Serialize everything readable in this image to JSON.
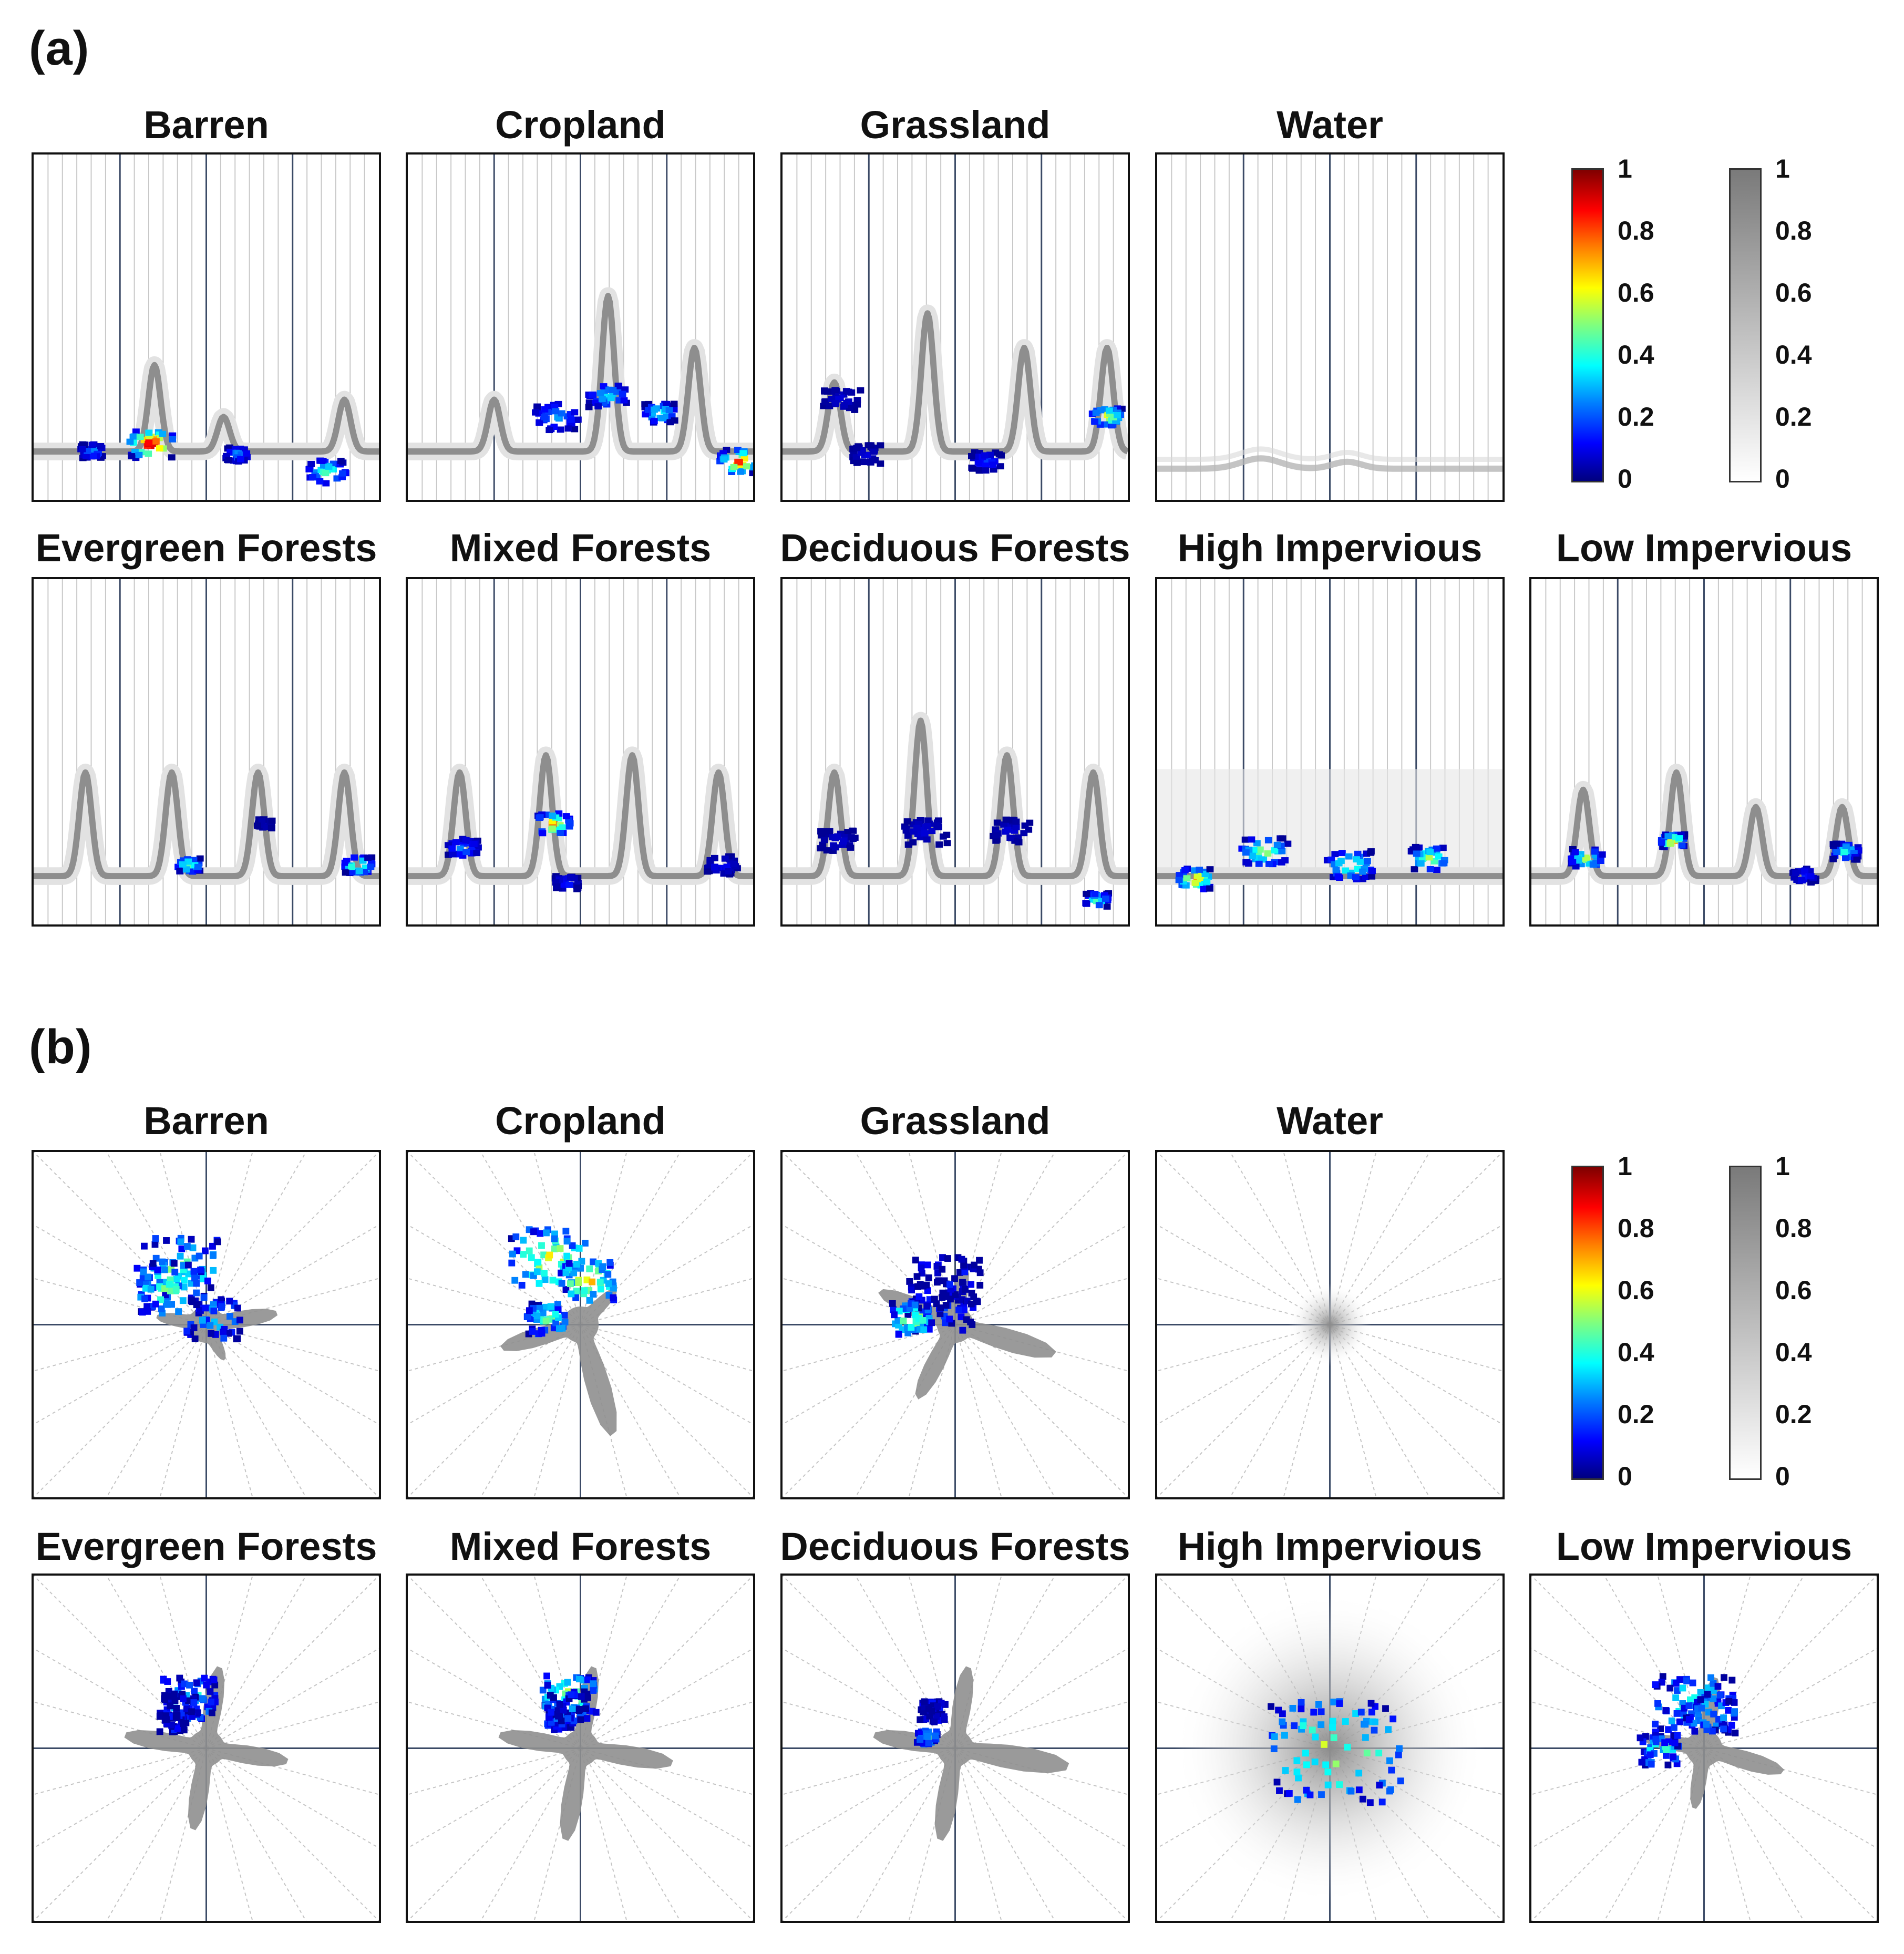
{
  "sections": [
    {
      "label": "(a)",
      "kind": "linear"
    },
    {
      "label": "(b)",
      "kind": "polar"
    }
  ],
  "panels": [
    {
      "title": "Barren",
      "hot": [
        [
          0.33,
          0.83,
          0.6,
          1.0
        ],
        [
          0.16,
          0.85,
          0.3,
          0.3
        ],
        [
          0.58,
          0.86,
          0.3,
          0.3
        ],
        [
          0.84,
          0.91,
          0.5,
          0.5
        ]
      ],
      "polar_hot": [
        [
          0.5,
          0.35,
          0.6,
          0.45
        ],
        [
          0.35,
          0.3,
          0.5,
          0.45
        ],
        [
          0.9,
          0.05,
          0.4,
          0.3
        ]
      ],
      "peaks": [
        [
          0.35,
          0.25
        ],
        [
          0.55,
          0.1
        ],
        [
          0.9,
          0.15
        ]
      ]
    },
    {
      "title": "Cropland",
      "hot": [
        [
          0.42,
          0.75,
          0.6,
          0.3
        ],
        [
          0.95,
          0.88,
          0.5,
          0.9
        ],
        [
          0.57,
          0.69,
          0.5,
          0.4
        ],
        [
          0.72,
          0.74,
          0.4,
          0.5
        ]
      ],
      "polar_hot": [
        [
          0.5,
          0.4,
          0.6,
          0.6
        ],
        [
          0.75,
          0.25,
          0.4,
          0.7
        ],
        [
          5.6,
          0.2,
          0.3,
          0.5
        ]
      ],
      "peaks": [
        [
          0.25,
          0.15
        ],
        [
          0.58,
          0.45
        ],
        [
          0.83,
          0.3
        ]
      ]
    },
    {
      "title": "Grassland",
      "hot": [
        [
          0.16,
          0.7,
          0.5,
          0.1
        ],
        [
          0.23,
          0.86,
          0.4,
          0.1
        ],
        [
          0.93,
          0.75,
          0.4,
          0.7
        ],
        [
          0.58,
          0.88,
          0.4,
          0.2
        ]
      ],
      "polar_hot": [
        [
          0.4,
          0.15,
          0.5,
          0.1
        ],
        [
          0.6,
          0.25,
          0.5,
          0.05
        ],
        [
          5.8,
          0.25,
          0.3,
          0.6
        ]
      ],
      "peaks": [
        [
          0.15,
          0.2
        ],
        [
          0.42,
          0.4
        ],
        [
          0.7,
          0.3
        ],
        [
          0.94,
          0.3
        ]
      ]
    },
    {
      "title": "Water",
      "hot": [],
      "polar_hot": [],
      "peaks": []
    },
    {
      "title": "Evergreen Forests",
      "hot": [
        [
          0.44,
          0.82,
          0.3,
          0.6
        ],
        [
          0.93,
          0.82,
          0.35,
          0.7
        ],
        [
          0.66,
          0.7,
          0.2,
          0.1
        ]
      ],
      "polar_hot": [
        [
          0.55,
          0.3,
          0.4,
          0.4
        ],
        [
          5.4,
          0.25,
          0.2,
          0.1
        ],
        [
          2.4,
          0.28,
          0.25,
          0.1
        ]
      ],
      "peaks": [
        [
          0.15,
          0.3
        ],
        [
          0.4,
          0.3
        ],
        [
          0.65,
          0.3
        ],
        [
          0.9,
          0.3
        ]
      ]
    },
    {
      "title": "Mixed Forests",
      "hot": [
        [
          0.15,
          0.77,
          0.4,
          0.3
        ],
        [
          0.41,
          0.7,
          0.45,
          0.8
        ],
        [
          0.9,
          0.82,
          0.4,
          0.15
        ],
        [
          0.45,
          0.87,
          0.3,
          0.2
        ]
      ],
      "polar_hot": [
        [
          0.6,
          0.3,
          0.4,
          0.6
        ],
        [
          5.3,
          0.2,
          0.2,
          0.2
        ],
        [
          2.3,
          0.25,
          0.3,
          0.2
        ]
      ],
      "peaks": [
        [
          0.15,
          0.3
        ],
        [
          0.4,
          0.35
        ],
        [
          0.65,
          0.35
        ],
        [
          0.9,
          0.3
        ]
      ]
    },
    {
      "title": "Deciduous Forests",
      "hot": [
        [
          0.15,
          0.75,
          0.45,
          0.1
        ],
        [
          0.4,
          0.72,
          0.6,
          0.1
        ],
        [
          0.65,
          0.72,
          0.5,
          0.1
        ],
        [
          0.9,
          0.92,
          0.3,
          0.5
        ]
      ],
      "polar_hot": [
        [
          0.45,
          0.25,
          0.2,
          0.1
        ],
        [
          5.9,
          0.18,
          0.15,
          0.4
        ]
      ],
      "peaks": [
        [
          0.15,
          0.3
        ],
        [
          0.4,
          0.45
        ],
        [
          0.65,
          0.35
        ],
        [
          0.9,
          0.3
        ]
      ]
    },
    {
      "title": "High Impervious",
      "hot": [
        [
          0.1,
          0.86,
          0.45,
          0.8
        ],
        [
          0.3,
          0.78,
          0.6,
          0.6
        ],
        [
          0.55,
          0.82,
          0.6,
          0.55
        ],
        [
          0.78,
          0.8,
          0.5,
          0.6
        ]
      ],
      "polar_hot": [
        [
          0,
          0,
          1.0,
          0.55
        ]
      ],
      "peaks": []
    },
    {
      "title": "Low Impervious",
      "hot": [
        [
          0.15,
          0.8,
          0.4,
          0.6
        ],
        [
          0.4,
          0.75,
          0.3,
          0.8
        ],
        [
          0.78,
          0.85,
          0.3,
          0.2
        ],
        [
          0.9,
          0.78,
          0.35,
          0.45
        ]
      ],
      "polar_hot": [
        [
          0.6,
          0.25,
          0.6,
          0.4
        ],
        [
          5.7,
          0.25,
          0.3,
          0.4
        ],
        [
          2.1,
          0.2,
          0.4,
          0.3
        ]
      ],
      "peaks": [
        [
          0.15,
          0.25
        ],
        [
          0.42,
          0.3
        ],
        [
          0.65,
          0.2
        ],
        [
          0.9,
          0.2
        ]
      ]
    }
  ],
  "colorbars": {
    "jet": {
      "ticks": [
        "1",
        "0.8",
        "0.6",
        "0.4",
        "0.2",
        "0"
      ]
    },
    "gray": {
      "ticks": [
        "1",
        "0.8",
        "0.6",
        "0.4",
        "0.2",
        "0"
      ]
    }
  }
}
